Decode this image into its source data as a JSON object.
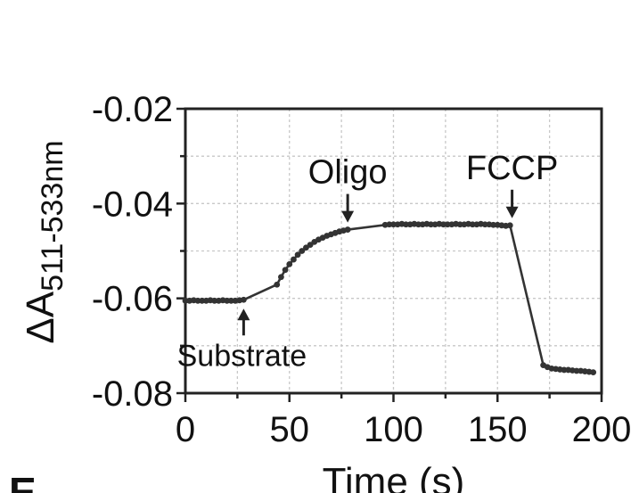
{
  "chart_data": {
    "type": "line",
    "title": "",
    "xlabel": "Time (s)",
    "ylabel": {
      "prefix": "ΔA",
      "subscript": "511-533nm"
    },
    "xlim": [
      0,
      200
    ],
    "ylim": [
      -0.08,
      -0.02
    ],
    "x_ticks": [
      0,
      50,
      100,
      150,
      200
    ],
    "x_tick_labels": [
      "0",
      "50",
      "100",
      "150",
      "200"
    ],
    "y_ticks": [
      -0.02,
      -0.04,
      -0.06,
      -0.08
    ],
    "y_tick_labels": [
      "-0.02",
      "-0.04",
      "-0.06",
      "-0.08"
    ],
    "grid": true,
    "series": [
      {
        "color": "#333333",
        "x": [
          0,
          2,
          4,
          6,
          8,
          10,
          12,
          14,
          16,
          18,
          20,
          22,
          24,
          26,
          28,
          44,
          46,
          48,
          50,
          52,
          54,
          56,
          58,
          60,
          62,
          64,
          66,
          68,
          70,
          72,
          74,
          76,
          78,
          96,
          98,
          100,
          102,
          104,
          106,
          108,
          110,
          112,
          114,
          116,
          118,
          120,
          122,
          124,
          126,
          128,
          130,
          132,
          134,
          136,
          138,
          140,
          142,
          144,
          146,
          148,
          150,
          152,
          154,
          156,
          172,
          174,
          176,
          178,
          180,
          182,
          184,
          186,
          188,
          190,
          192,
          194,
          196
        ],
        "y": [
          -0.0605,
          -0.0605,
          -0.0604,
          -0.0605,
          -0.0605,
          -0.0605,
          -0.0604,
          -0.0605,
          -0.0605,
          -0.0604,
          -0.0605,
          -0.0605,
          -0.0605,
          -0.0604,
          -0.0603,
          -0.0571,
          -0.0555,
          -0.054,
          -0.0528,
          -0.0518,
          -0.0508,
          -0.05,
          -0.0493,
          -0.0487,
          -0.0481,
          -0.0476,
          -0.0472,
          -0.0468,
          -0.0465,
          -0.0462,
          -0.0459,
          -0.0457,
          -0.0455,
          -0.0445,
          -0.0444,
          -0.0444,
          -0.0444,
          -0.0443,
          -0.0444,
          -0.0444,
          -0.0443,
          -0.0444,
          -0.0444,
          -0.0443,
          -0.0444,
          -0.0444,
          -0.0443,
          -0.0444,
          -0.0444,
          -0.0444,
          -0.0443,
          -0.0444,
          -0.0444,
          -0.0443,
          -0.0444,
          -0.0444,
          -0.0443,
          -0.0444,
          -0.0444,
          -0.0445,
          -0.0445,
          -0.0446,
          -0.0447,
          -0.0446,
          -0.0741,
          -0.0745,
          -0.0748,
          -0.0749,
          -0.075,
          -0.0751,
          -0.0751,
          -0.0752,
          -0.0753,
          -0.0753,
          -0.0754,
          -0.0755,
          -0.0756
        ]
      }
    ],
    "annotations": [
      {
        "text": "Oligo",
        "x": 78,
        "arrow": "down"
      },
      {
        "text": "FCCP",
        "x": 157,
        "arrow": "down"
      },
      {
        "text": "Substrate",
        "x": 28,
        "arrow": "up"
      }
    ]
  },
  "panel_label": "E"
}
